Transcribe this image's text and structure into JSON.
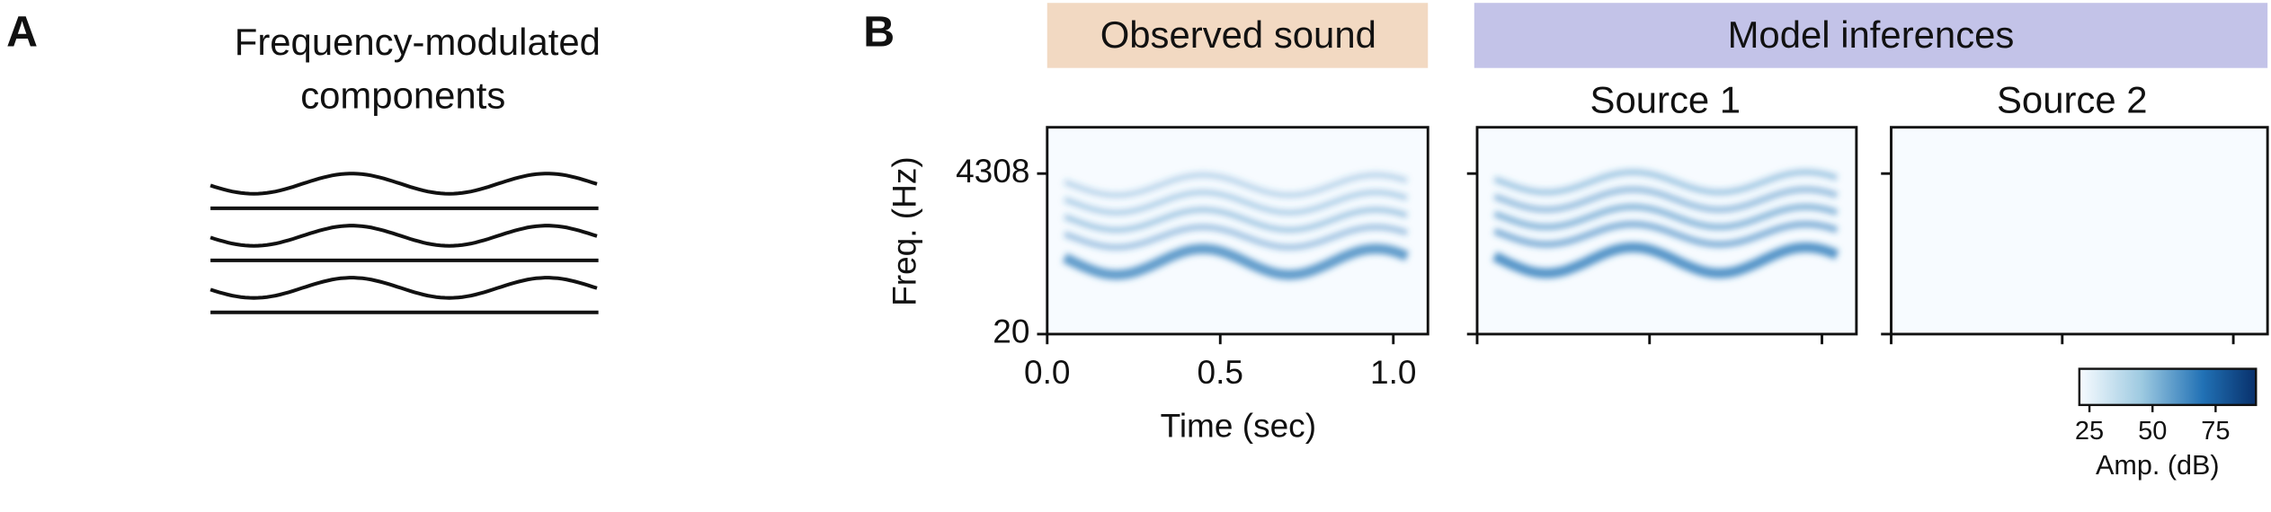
{
  "panel_a": {
    "label": "A",
    "title_lines": [
      "Frequency-modulated",
      "components"
    ]
  },
  "panel_b": {
    "label": "B",
    "observed_header": "Observed sound",
    "model_header": "Model inferences",
    "source_titles": [
      "Source 1",
      "Source 2"
    ],
    "y_label": "Freq. (Hz)",
    "x_label": "Time (sec)",
    "yticks": [
      4308,
      20
    ],
    "xlim": [
      0,
      1.1
    ],
    "xticks": [
      {
        "value": 0,
        "label": "0.0"
      },
      {
        "value": 0.5,
        "label": "0.5"
      },
      {
        "value": 1,
        "label": "1.0"
      }
    ],
    "colorbar": {
      "label": "Amp. (dB)",
      "lim": [
        21,
        91
      ],
      "ticks": [
        25,
        50,
        75
      ]
    }
  }
}
